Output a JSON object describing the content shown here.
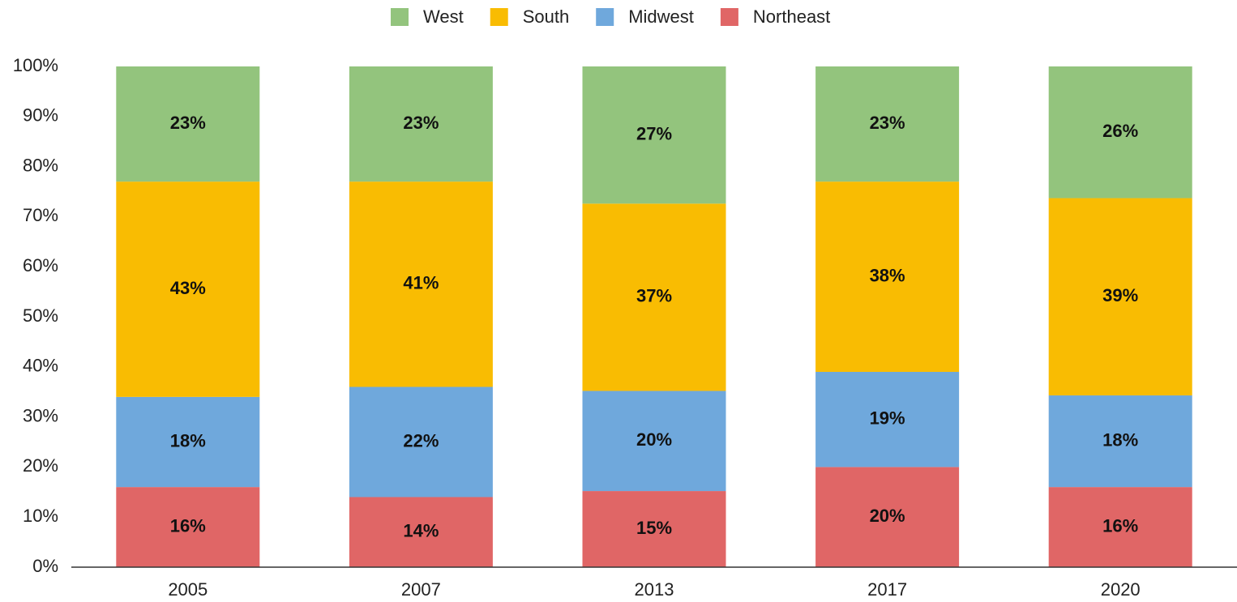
{
  "chart_data": {
    "type": "stacked_bar",
    "categories": [
      "2005",
      "2007",
      "2013",
      "2017",
      "2020"
    ],
    "series": [
      {
        "name": "West",
        "color": "#93c47d",
        "values": [
          23,
          23,
          27.4,
          23,
          26.3
        ],
        "value_labels": [
          "23%",
          "23%",
          "27%",
          "23%",
          "26%"
        ]
      },
      {
        "name": "South",
        "color": "#f9bc02",
        "values": [
          43,
          41,
          37.4,
          38,
          39.4
        ],
        "value_labels": [
          "43%",
          "41%",
          "37%",
          "38%",
          "39%"
        ]
      },
      {
        "name": "Midwest",
        "color": "#6fa8dc",
        "values": [
          18,
          22,
          20,
          19,
          18.3
        ],
        "value_labels": [
          "18%",
          "22%",
          "20%",
          "19%",
          "18%"
        ]
      },
      {
        "name": "Northeast",
        "color": "#e06666",
        "values": [
          16,
          14,
          15.2,
          20,
          16
        ],
        "value_labels": [
          "16%",
          "14%",
          "15%",
          "20%",
          "16%"
        ]
      }
    ],
    "ylim": [
      0,
      100
    ],
    "yticks": [
      {
        "value": 0,
        "label": "0%"
      },
      {
        "value": 10,
        "label": "10%"
      },
      {
        "value": 20,
        "label": "20%"
      },
      {
        "value": 30,
        "label": "30%"
      },
      {
        "value": 40,
        "label": "40%"
      },
      {
        "value": 50,
        "label": "50%"
      },
      {
        "value": 60,
        "label": "60%"
      },
      {
        "value": 70,
        "label": "70%"
      },
      {
        "value": 80,
        "label": "80%"
      },
      {
        "value": 90,
        "label": "90%"
      },
      {
        "value": 100,
        "label": "100%"
      }
    ],
    "legend": "top",
    "grid": false
  }
}
